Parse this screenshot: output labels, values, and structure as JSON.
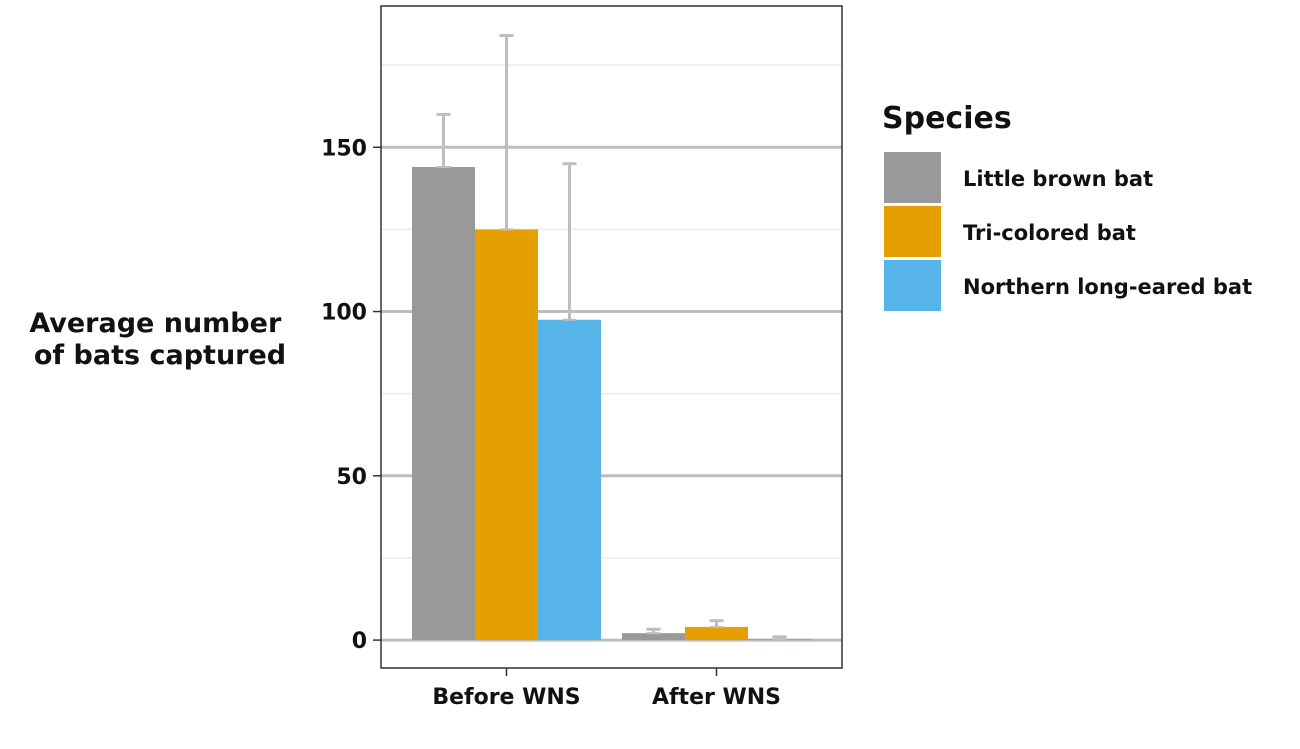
{
  "chart_data": {
    "type": "bar",
    "title": "",
    "xlabel": "",
    "ylabel_lines": [
      "Average number",
      "of bats captured"
    ],
    "categories": [
      "Before WNS",
      "After WNS"
    ],
    "yticks": [
      0,
      50,
      100,
      150
    ],
    "ytick_labels": [
      "0",
      "50",
      "100",
      "150"
    ],
    "ylim": [
      -8.5,
      193
    ],
    "grid": true,
    "legend": {
      "title": "Species",
      "placement": "right"
    },
    "series": [
      {
        "name": "Little brown bat",
        "color": "#999999",
        "values": [
          144,
          2.1
        ],
        "error_upper": [
          160,
          3.3
        ]
      },
      {
        "name": "Tri-colored bat",
        "color": "#E69F00",
        "values": [
          125,
          4.0
        ],
        "error_upper": [
          184,
          5.9
        ]
      },
      {
        "name": "Northern long-eared bat",
        "color": "#56B4E9",
        "values": [
          97.5,
          0.3
        ],
        "error_upper": [
          145,
          1.0
        ]
      }
    ],
    "error_bar_color": "#BEBEBE"
  }
}
